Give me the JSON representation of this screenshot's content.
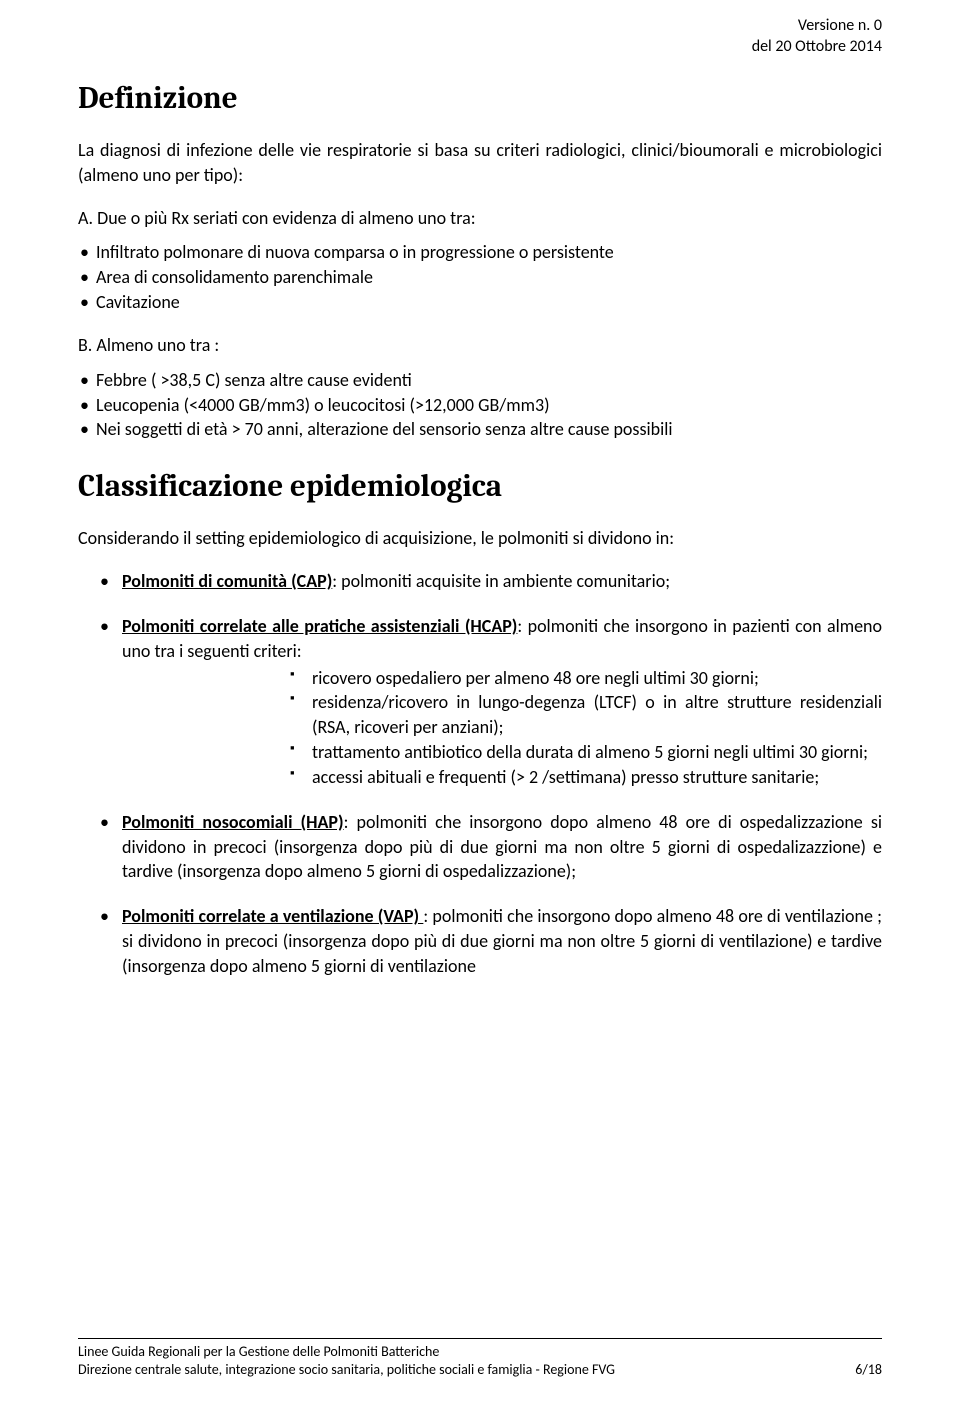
{
  "header": {
    "version": "Versione n. 0",
    "date": "del 20 Ottobre 2014"
  },
  "h1": "Definizione",
  "p1": "La diagnosi di infezione delle vie respiratorie si basa su criteri radiologici, clinici/bioumorali e microbiologici (almeno uno per tipo):",
  "sectionA": "A. Due o più Rx seriati con evidenza di almeno uno tra:",
  "listA": [
    "Infiltrato polmonare di nuova comparsa o in progressione o persistente",
    "Area di consolidamento parenchimale",
    "Cavitazione"
  ],
  "sectionB": "B. Almeno uno tra :",
  "listB": [
    "Febbre ( >38,5 C) senza altre cause evidenti",
    "Leucopenia (<4000 GB/mm3) o leucocitosi (>12,000 GB/mm3)",
    "Nei soggetti di età > 70 anni, alterazione del sensorio senza altre cause possibili"
  ],
  "h2": "Classificazione epidemiologica",
  "p2": "Considerando il setting epidemiologico di acquisizione, le polmoniti si dividono in:",
  "classes": [
    {
      "title": "Polmoniti di comunità (CAP)",
      "rest": ": polmoniti acquisite in ambiente comunitario;"
    },
    {
      "title": "Polmoniti correlate alle pratiche assistenziali (HCAP)",
      "rest": ": polmoniti  che insorgono in pazienti con almeno uno tra i seguenti criteri:",
      "sub": [
        "ricovero ospedaliero per almeno 48 ore negli ultimi 30 giorni;",
        "residenza/ricovero in lungo-degenza (LTCF) o in altre strutture residenziali (RSA, ricoveri per anziani);",
        "trattamento antibiotico della durata di almeno 5 giorni negli ultimi 30 giorni;",
        "accessi abituali e frequenti (> 2 /settimana) presso strutture sanitarie;"
      ]
    },
    {
      "title": "Polmoniti  nosocomiali (HAP)",
      "rest": ": polmoniti  che insorgono dopo almeno  48 ore di ospedalizzazione si dividono in precoci (insorgenza dopo più di due giorni  ma non oltre 5 giorni di ospedalizazzione) e tardive (insorgenza dopo almeno 5 giorni di ospedalizzazione);"
    },
    {
      "title": "Polmoniti correlate a ventilazione (VAP) ",
      "rest": ": polmoniti che insorgono dopo almeno 48 ore di ventilazione ; si dividono in precoci (insorgenza dopo più di due giorni  ma non oltre 5 giorni di ventilazione) e tardive (insorgenza dopo almeno 5 giorni di ventilazione"
    }
  ],
  "footer": {
    "line1": "Linee Guida Regionali per la Gestione delle Polmoniti Batteriche",
    "line2": "Direzione centrale salute, integrazione socio sanitaria,  politiche sociali e famiglia - Regione FVG",
    "page": "6/18"
  }
}
